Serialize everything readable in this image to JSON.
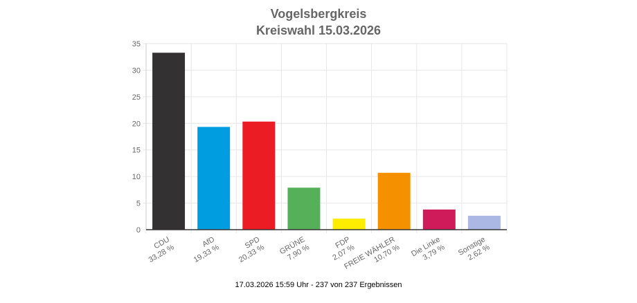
{
  "chart_data": {
    "type": "bar",
    "title": "Vogelsbergkreis",
    "subtitle": "Kreiswahl 15.03.2026",
    "categories": [
      "CDU",
      "AfD",
      "SPD",
      "GRÜNE",
      "FDP",
      "FREIE WÄHLER",
      "Die Linke",
      "Sonstige"
    ],
    "value_labels": [
      "33,28 %",
      "19,33 %",
      "20,33 %",
      "7,90 %",
      "2,07 %",
      "10,70 %",
      "3,79 %",
      "2,62 %"
    ],
    "values": [
      33.28,
      19.33,
      20.33,
      7.9,
      2.07,
      10.7,
      3.79,
      2.62
    ],
    "colors": [
      "#333132",
      "#009ee0",
      "#ec1c24",
      "#56b05a",
      "#ffed00",
      "#f59100",
      "#d01b5b",
      "#aab8e3"
    ],
    "ylim": [
      0,
      35
    ],
    "yticks": [
      0,
      5,
      10,
      15,
      20,
      25,
      30,
      35
    ],
    "grid": true,
    "legend": "none"
  },
  "footer": "17.03.2026 15:59 Uhr - 237 von 237 Ergebnissen"
}
